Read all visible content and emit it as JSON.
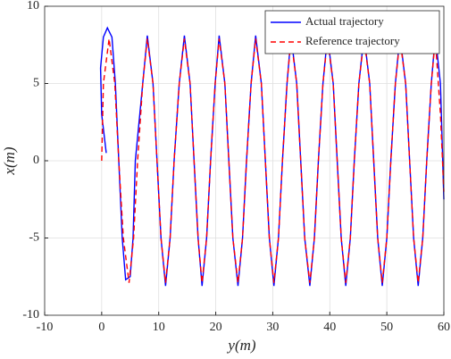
{
  "chart_data": {
    "type": "line",
    "xlabel": "y(m)",
    "ylabel": "x(m)",
    "xlim": [
      -10,
      60
    ],
    "ylim": [
      -10,
      10
    ],
    "xticks": [
      -10,
      0,
      10,
      20,
      30,
      40,
      50,
      60
    ],
    "yticks": [
      -10,
      -5,
      0,
      5,
      10
    ],
    "grid": true,
    "legend_position": "upper right",
    "series": [
      {
        "name": "Actual trajectory",
        "color": "#0000ff",
        "dash": "solid",
        "x": [
          0.8,
          0,
          -0.2,
          0.3,
          1,
          1.8,
          2.4,
          3.0,
          3.6,
          4.2,
          5.0,
          5.5,
          5.9,
          7.2,
          8.0,
          9.0,
          9.7,
          10.4,
          11.2,
          12.0,
          12.7,
          13.6,
          14.5,
          15.5,
          16.2,
          16.9,
          17.6,
          18.4,
          19.1,
          19.9,
          20.6,
          21.6,
          22.3,
          23.0,
          23.9,
          24.7,
          25.4,
          26.2,
          27.0,
          28.0,
          28.7,
          29.4,
          30.2,
          31.0,
          31.7,
          32.5,
          33.2,
          34.2,
          34.9,
          35.6,
          36.5,
          37.3,
          38.0,
          38.8,
          39.6,
          40.6,
          41.3,
          42.0,
          42.8,
          43.6,
          44.3,
          45.1,
          46.0,
          47.0,
          47.7,
          48.4,
          49.2,
          50.0,
          50.7,
          51.5,
          52.3,
          53.3,
          54.0,
          54.7,
          55.5,
          56.3,
          57.0,
          57.8,
          58.5,
          59.4,
          60
        ],
        "values": [
          0.5,
          3,
          6,
          8,
          8.6,
          8,
          5,
          0,
          -5,
          -7.7,
          -7.5,
          -5,
          0,
          5,
          8.1,
          5,
          0,
          -5,
          -8.1,
          -5,
          0,
          5,
          8.1,
          5,
          0,
          -5,
          -8.1,
          -5,
          0,
          5,
          8.1,
          5,
          0,
          -5,
          -8.1,
          -5,
          0,
          5,
          8.1,
          5,
          0,
          -5,
          -8.1,
          -5,
          0,
          5,
          8.1,
          5,
          0,
          -5,
          -8.1,
          -5,
          0,
          5,
          8.1,
          5,
          0,
          -5,
          -8.1,
          -5,
          0,
          5,
          8.1,
          5,
          0,
          -5,
          -8.1,
          -5,
          0,
          5,
          8.1,
          5,
          0,
          -5,
          -8.1,
          -5,
          0,
          5,
          8.1,
          5,
          -2.5
        ]
      },
      {
        "name": "Reference trajectory",
        "color": "#ff0000",
        "dash": "dashed",
        "x": [
          0,
          0.3,
          1.3,
          2.3,
          3.0,
          3.8,
          4.8,
          5.6,
          6.3,
          7.2,
          8.0,
          9.0,
          9.7,
          10.4,
          11.2,
          12.0,
          12.7,
          13.6,
          14.5,
          15.5,
          16.2,
          16.9,
          17.6,
          18.4,
          19.1,
          19.9,
          20.6,
          21.6,
          22.3,
          23.0,
          23.9,
          24.7,
          25.4,
          26.2,
          27.0,
          28.0,
          28.7,
          29.4,
          30.2,
          31.0,
          31.7,
          32.5,
          33.2,
          34.2,
          34.9,
          35.6,
          36.5,
          37.3,
          38.0,
          38.8,
          39.6,
          40.6,
          41.3,
          42.0,
          42.8,
          43.6,
          44.3,
          45.1,
          46.0,
          47.0,
          47.7,
          48.4,
          49.2,
          50.0,
          50.7,
          51.5,
          52.3,
          53.3,
          54.0,
          54.7,
          55.5,
          56.3,
          57.0,
          57.8,
          58.5,
          59.4,
          60
        ],
        "values": [
          0,
          5,
          7.9,
          5,
          0,
          -5,
          -7.9,
          -5,
          0,
          5,
          7.9,
          5,
          0,
          -5,
          -7.9,
          -5,
          0,
          5,
          7.9,
          5,
          0,
          -5,
          -7.9,
          -5,
          0,
          5,
          7.9,
          5,
          0,
          -5,
          -7.9,
          -5,
          0,
          5,
          7.9,
          5,
          0,
          -5,
          -7.9,
          -5,
          0,
          5,
          7.9,
          5,
          0,
          -5,
          -7.9,
          -5,
          0,
          5,
          7.9,
          5,
          0,
          -5,
          -7.9,
          -5,
          0,
          5,
          7.9,
          5,
          0,
          -5,
          -7.9,
          -5,
          0,
          5,
          7.9,
          5,
          0,
          -5,
          -7.9,
          -5,
          0,
          5,
          7.9,
          3,
          -2
        ]
      }
    ]
  }
}
